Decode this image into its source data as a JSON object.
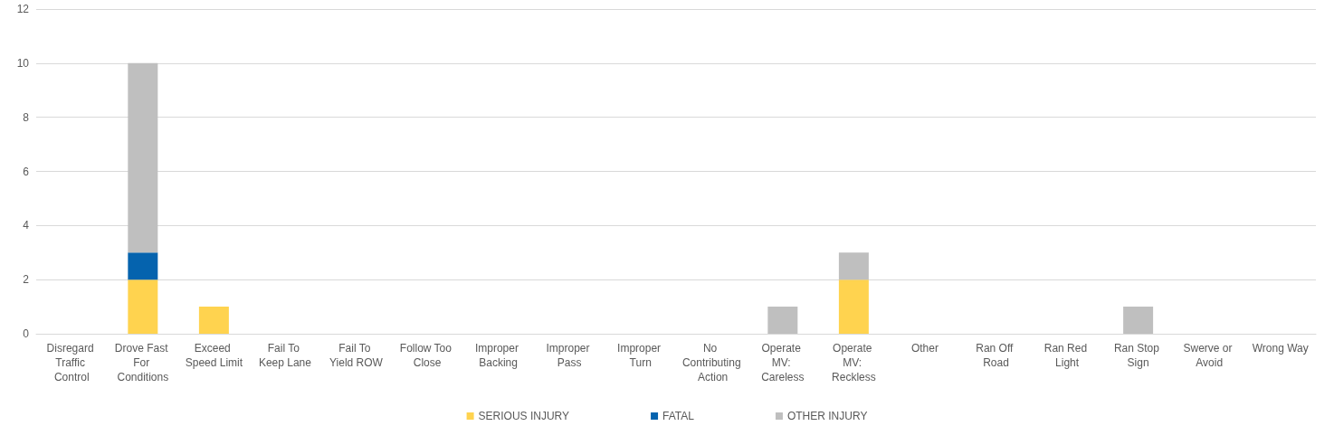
{
  "chart_data": {
    "type": "bar",
    "stacked": true,
    "categories": [
      "Disregard Traffic Control",
      "Drove Fast For Conditions",
      "Exceed Speed Limit",
      "Fail To Keep Lane",
      "Fail To Yield ROW",
      "Follow Too Close",
      "Improper Backing",
      "Improper Pass",
      "Improper Turn",
      "No Contributing Action",
      "Operate MV: Careless",
      "Operate MV: Reckless",
      "Other",
      "Ran Off Road",
      "Ran Red Light",
      "Ran Stop Sign",
      "Swerve or Avoid",
      "Wrong Way"
    ],
    "series": [
      {
        "name": "SERIOUS INJURY",
        "color": "#ffd34f",
        "values": [
          0,
          2,
          1,
          0,
          0,
          0,
          0,
          0,
          0,
          0,
          0,
          2,
          0,
          0,
          0,
          0,
          0,
          0
        ]
      },
      {
        "name": "FATAL",
        "color": "#0563ae",
        "values": [
          0,
          1,
          0,
          0,
          0,
          0,
          0,
          0,
          0,
          0,
          0,
          0,
          0,
          0,
          0,
          0,
          0,
          0
        ]
      },
      {
        "name": "OTHER INJURY",
        "color": "#bfbfbf",
        "values": [
          0,
          7,
          0,
          0,
          0,
          0,
          0,
          0,
          0,
          0,
          1,
          1,
          0,
          0,
          0,
          1,
          0,
          0
        ]
      }
    ],
    "ylim": [
      0,
      12
    ],
    "yticks": [
      0,
      2,
      4,
      6,
      8,
      10,
      12
    ],
    "grid": "y",
    "legend": "bottom"
  }
}
